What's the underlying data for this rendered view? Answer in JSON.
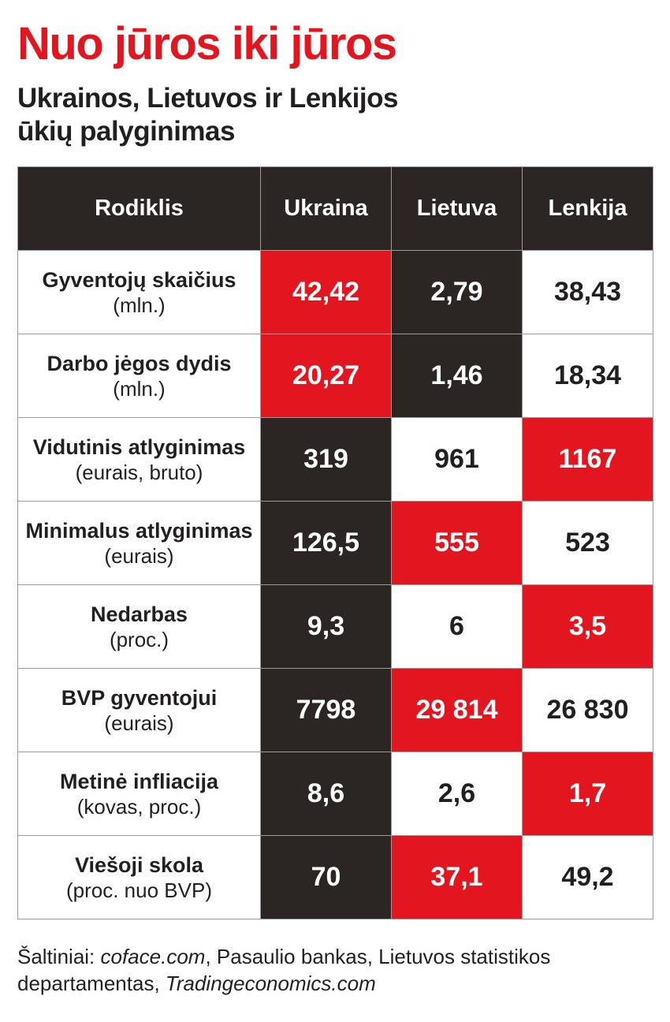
{
  "title": "Nuo jūros iki jūros",
  "subtitle": {
    "line1": "Ukrainos, Lietuvos ir Lenkijos",
    "line2": "ūkių palyginimas"
  },
  "colors": {
    "red": "#e3151f",
    "dark": "#2b2523",
    "white": "#ffffff"
  },
  "chart_data": {
    "type": "table",
    "columns": [
      "Rodiklis",
      "Ukraina",
      "Lietuva",
      "Lenkija"
    ],
    "rows": [
      {
        "label": "Gyventojų skaičius",
        "unit": "(mln.)",
        "values": [
          "42,42",
          "2,79",
          "38,43"
        ],
        "fills": [
          "red",
          "dark",
          "white"
        ]
      },
      {
        "label": "Darbo jėgos dydis",
        "unit": "(mln.)",
        "values": [
          "20,27",
          "1,46",
          "18,34"
        ],
        "fills": [
          "red",
          "dark",
          "white"
        ]
      },
      {
        "label": "Vidutinis atlyginimas",
        "unit": "(eurais, bruto)",
        "values": [
          "319",
          "961",
          "1167"
        ],
        "fills": [
          "dark",
          "white",
          "red"
        ]
      },
      {
        "label": "Minimalus atlyginimas",
        "unit": "(eurais)",
        "values": [
          "126,5",
          "555",
          "523"
        ],
        "fills": [
          "dark",
          "red",
          "white"
        ]
      },
      {
        "label": "Nedarbas",
        "unit": "(proc.)",
        "values": [
          "9,3",
          "6",
          "3,5"
        ],
        "fills": [
          "dark",
          "white",
          "red"
        ]
      },
      {
        "label": "BVP gyventojui",
        "unit": "(eurais)",
        "values": [
          "7798",
          "29 814",
          "26 830"
        ],
        "fills": [
          "dark",
          "red",
          "white"
        ]
      },
      {
        "label": "Metinė infliacija",
        "unit": "(kovas, proc.)",
        "values": [
          "8,6",
          "2,6",
          "1,7"
        ],
        "fills": [
          "dark",
          "white",
          "red"
        ]
      },
      {
        "label": "Viešoji skola",
        "unit": "(proc. nuo BVP)",
        "values": [
          "70",
          "37,1",
          "49,2"
        ],
        "fills": [
          "dark",
          "red",
          "white"
        ]
      }
    ]
  },
  "source": {
    "prefix": "Šaltiniai: ",
    "link1": "coface.com",
    "middle": ", Pasaulio bankas, Lietuvos statistikos departamentas, ",
    "link2": "Tradingeconomics.com"
  }
}
